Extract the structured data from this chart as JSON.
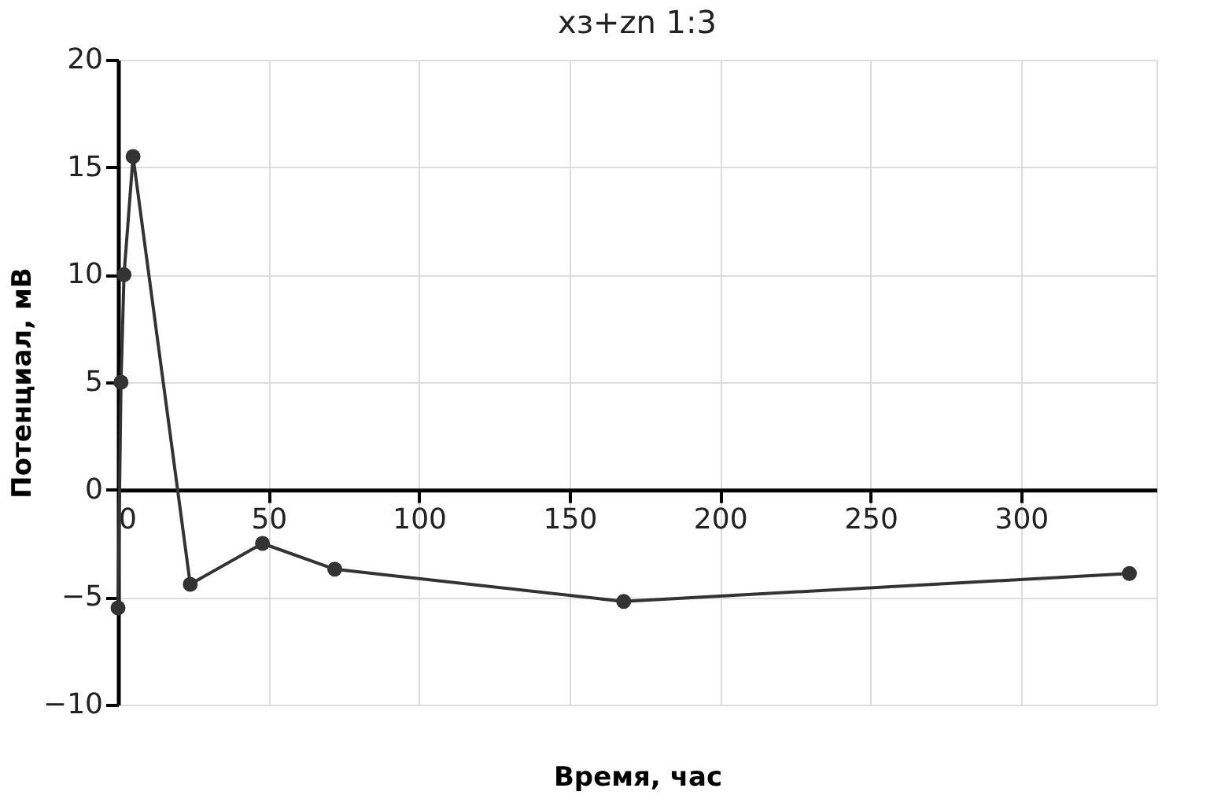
{
  "chart_data": {
    "type": "line",
    "title": "xз+zn 1:3",
    "xlabel": "Время, час",
    "ylabel": "Потенциал, мВ",
    "x": [
      0,
      1,
      2,
      5,
      24,
      48,
      72,
      168,
      336
    ],
    "series": [
      {
        "color": "#333333",
        "values": [
          -5.5,
          5,
          10,
          15.5,
          -4.4,
          -2.5,
          -3.7,
          -5.2,
          -3.9
        ]
      }
    ],
    "xlim": [
      0,
      345
    ],
    "xticks": [
      0,
      50,
      100,
      150,
      200,
      250,
      300
    ],
    "ylim": [
      -10,
      20
    ],
    "yticks": [
      -10,
      -5,
      0,
      5,
      10,
      15,
      20
    ],
    "grid": true,
    "marker": "circle",
    "line_style": "solid"
  }
}
